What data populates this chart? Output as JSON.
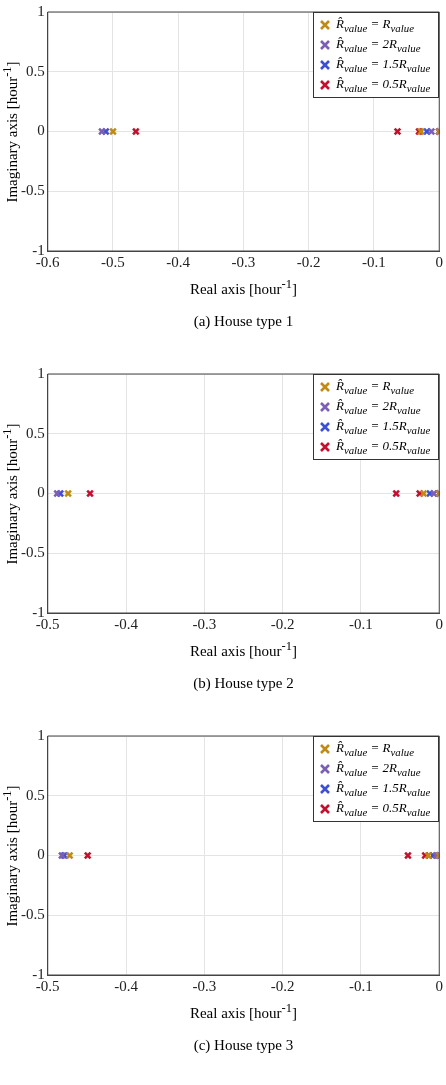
{
  "chart_data": [
    {
      "type": "scatter",
      "title": "(a) House type 1",
      "xlabel": "Real axis [hour$^{-1}$]",
      "ylabel": "Imaginary axis [hour$^{-1}$]",
      "xlim": [
        -0.6,
        0
      ],
      "xticks": [
        -0.6,
        -0.5,
        -0.4,
        -0.3,
        -0.2,
        -0.1,
        0
      ],
      "ylim": [
        -1,
        1
      ],
      "yticks": [
        -1,
        -0.5,
        0,
        0.5,
        1
      ],
      "grid": true,
      "legend": "top right",
      "marker": "cross",
      "series": [
        {
          "name": "R̂$_{value}$ = R$_{value}$",
          "color": "#c08a14",
          "x": [
            -0.5,
            -0.028,
            0
          ],
          "values": [
            0,
            0,
            0
          ]
        },
        {
          "name": "R̂$_{value}$ = 2R$_{value}$",
          "color": "#7b5fb5",
          "x": [
            -0.517,
            -0.012,
            0
          ],
          "values": [
            0,
            0,
            0
          ]
        },
        {
          "name": "R̂$_{value}$ = 1.5R$_{value}$",
          "color": "#3d4fd4",
          "x": [
            -0.511,
            -0.019,
            0
          ],
          "values": [
            0,
            0,
            0
          ]
        },
        {
          "name": "R̂$_{value}$ = 0.5R$_{value}$",
          "color": "#c4102e",
          "x": [
            -0.465,
            -0.064,
            -0.031,
            0
          ],
          "values": [
            0,
            0,
            0,
            0
          ]
        }
      ]
    },
    {
      "type": "scatter",
      "title": "(b) House type 2",
      "xlabel": "Real axis [hour$^{-1}$]",
      "ylabel": "Imaginary axis [hour$^{-1}$]",
      "xlim": [
        -0.5,
        0
      ],
      "xticks": [
        -0.5,
        -0.4,
        -0.3,
        -0.2,
        -0.1,
        0
      ],
      "ylim": [
        -1,
        1
      ],
      "yticks": [
        -1,
        -0.5,
        0,
        0.5,
        1
      ],
      "grid": true,
      "legend": "top right",
      "marker": "cross",
      "series": [
        {
          "name": "R̂$_{value}$ = R$_{value}$",
          "color": "#c08a14",
          "x": [
            -0.474,
            -0.02,
            0
          ],
          "values": [
            0,
            0,
            0
          ]
        },
        {
          "name": "R̂$_{value}$ = 2R$_{value}$",
          "color": "#7b5fb5",
          "x": [
            -0.488,
            -0.007,
            0
          ],
          "values": [
            0,
            0,
            0
          ]
        },
        {
          "name": "R̂$_{value}$ = 1.5R$_{value}$",
          "color": "#3d4fd4",
          "x": [
            -0.484,
            -0.012,
            0
          ],
          "values": [
            0,
            0,
            0
          ]
        },
        {
          "name": "R̂$_{value}$ = 0.5R$_{value}$",
          "color": "#c4102e",
          "x": [
            -0.446,
            -0.055,
            -0.025,
            0
          ],
          "values": [
            0,
            0,
            0,
            0
          ]
        }
      ]
    },
    {
      "type": "scatter",
      "title": "(c) House type 3",
      "xlabel": "Real axis [hour$^{-1}$]",
      "ylabel": "Imaginary axis [hour$^{-1}$]",
      "xlim": [
        -0.5,
        0
      ],
      "xticks": [
        -0.5,
        -0.4,
        -0.3,
        -0.2,
        -0.1,
        0
      ],
      "ylim": [
        -1,
        1
      ],
      "yticks": [
        -1,
        -0.5,
        0,
        0.5,
        1
      ],
      "grid": true,
      "legend": "top right",
      "marker": "cross",
      "series": [
        {
          "name": "R̂$_{value}$ = R$_{value}$",
          "color": "#c08a14",
          "x": [
            -0.472,
            -0.014,
            0
          ],
          "values": [
            0,
            0,
            0
          ]
        },
        {
          "name": "R̂$_{value}$ = 2R$_{value}$",
          "color": "#7b5fb5",
          "x": [
            -0.482,
            -0.004,
            0
          ],
          "values": [
            0,
            0,
            0
          ]
        },
        {
          "name": "R̂$_{value}$ = 1.5R$_{value}$",
          "color": "#3d4fd4",
          "x": [
            -0.479,
            -0.008,
            0
          ],
          "values": [
            0,
            0,
            0
          ]
        },
        {
          "name": "R̂$_{value}$ = 0.5R$_{value}$",
          "color": "#c4102e",
          "x": [
            -0.449,
            -0.04,
            -0.018,
            0
          ],
          "values": [
            0,
            0,
            0,
            0
          ]
        }
      ]
    }
  ]
}
